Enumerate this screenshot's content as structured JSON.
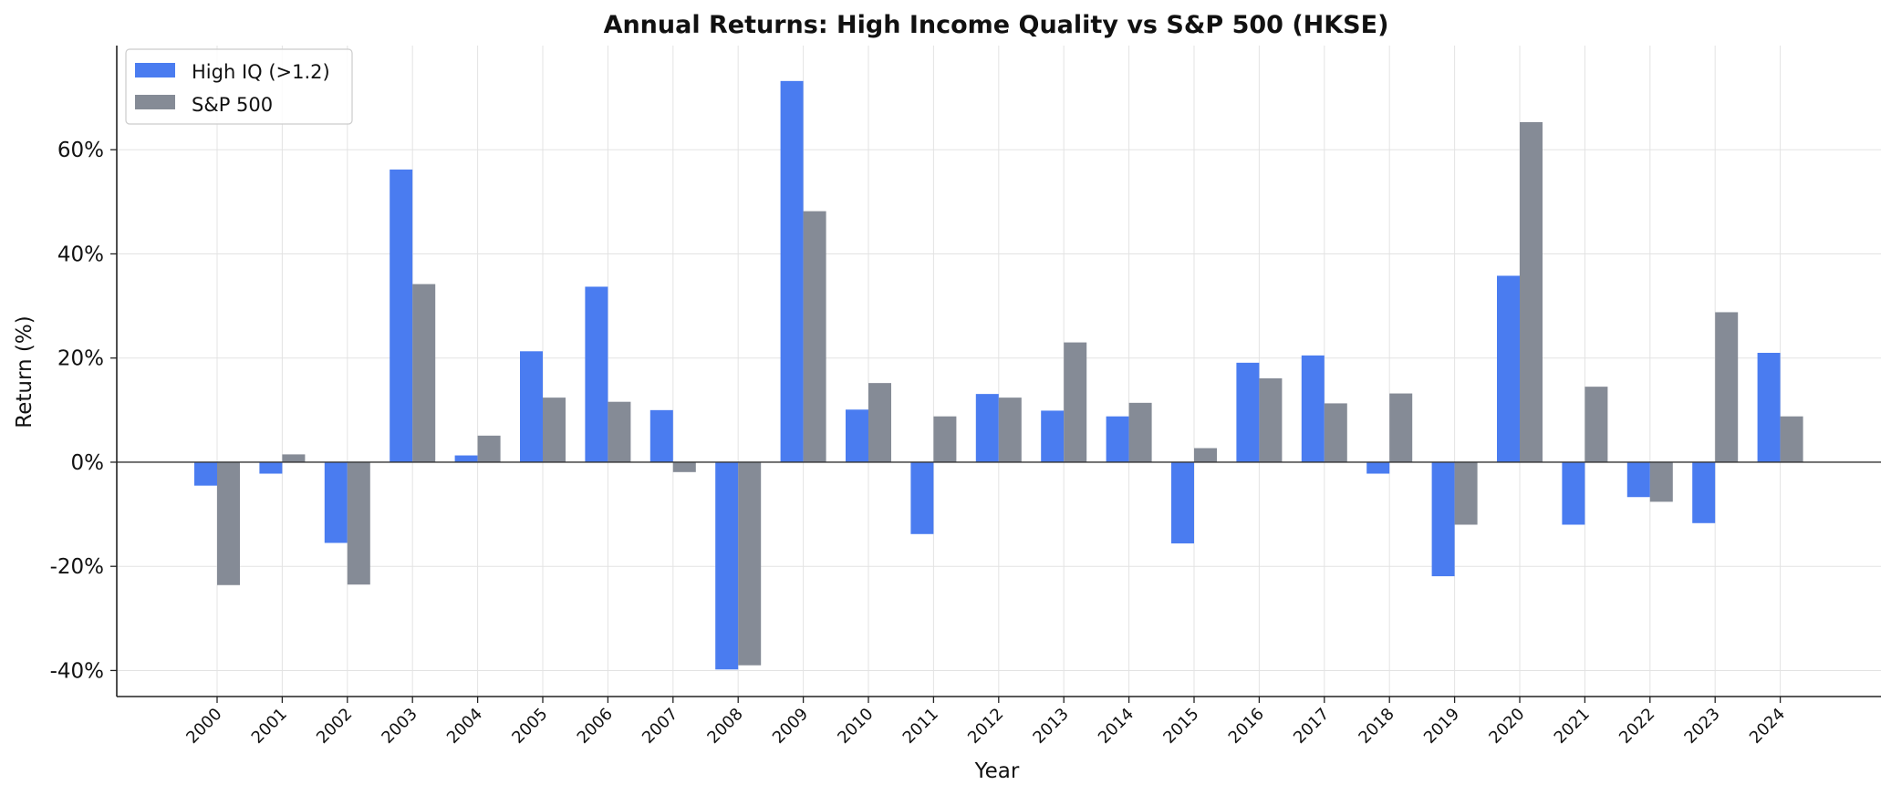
{
  "chart_data": {
    "type": "bar",
    "title": "Annual Returns: High Income Quality vs S&P 500 (HKSE)",
    "xlabel": "Year",
    "ylabel": "Return (%)",
    "ylim": [
      -45,
      80
    ],
    "yticks": [
      -40,
      -20,
      0,
      20,
      40,
      60
    ],
    "ytick_labels": [
      "-40%",
      "-20%",
      "0%",
      "20%",
      "40%",
      "60%"
    ],
    "grid": true,
    "legend_position": "top-left",
    "categories": [
      "2000",
      "2001",
      "2002",
      "2003",
      "2004",
      "2005",
      "2006",
      "2007",
      "2008",
      "2009",
      "2010",
      "2011",
      "2012",
      "2013",
      "2014",
      "2015",
      "2016",
      "2017",
      "2018",
      "2019",
      "2020",
      "2021",
      "2022",
      "2023",
      "2024"
    ],
    "series": [
      {
        "name": "High IQ (>1.2)",
        "color": "#4a7cf0",
        "values": [
          -4.5,
          -2.2,
          -15.5,
          56.2,
          1.3,
          21.3,
          33.7,
          10.0,
          -39.8,
          73.2,
          10.1,
          -13.8,
          13.1,
          9.9,
          8.8,
          -15.6,
          19.1,
          20.5,
          -2.2,
          -21.9,
          35.8,
          -12.0,
          -6.7,
          -11.7,
          21.0
        ]
      },
      {
        "name": "S&P 500",
        "color": "#858b96",
        "values": [
          -23.6,
          1.5,
          -23.5,
          34.2,
          5.1,
          12.4,
          11.6,
          -1.9,
          -39.0,
          48.2,
          15.2,
          8.8,
          12.4,
          23.0,
          11.4,
          2.7,
          16.1,
          11.3,
          13.2,
          -12.0,
          65.3,
          14.5,
          -7.6,
          28.8,
          8.8
        ]
      }
    ]
  }
}
